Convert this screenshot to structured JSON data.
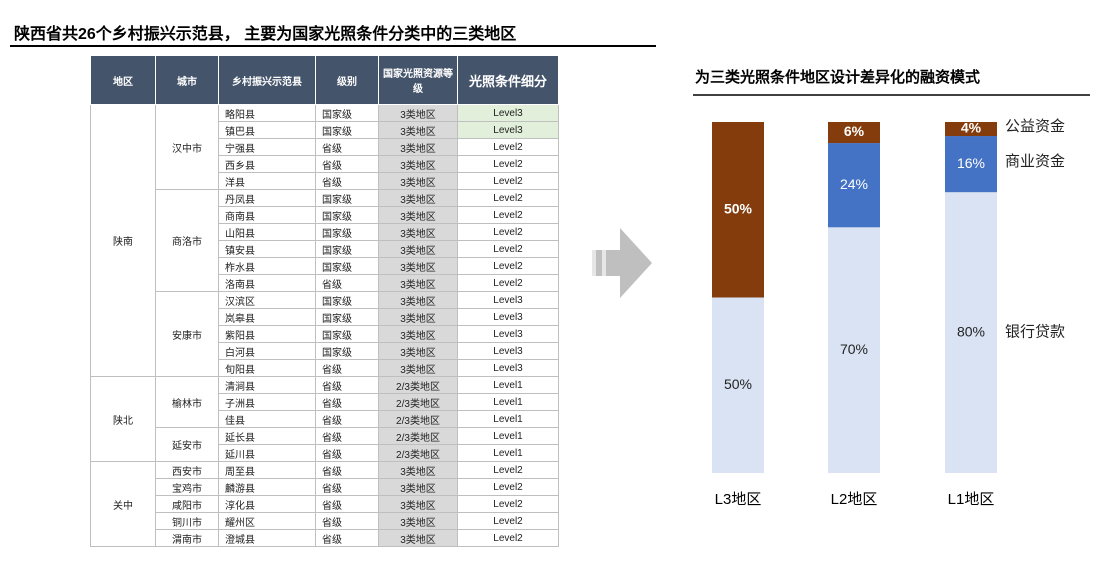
{
  "title": "陕西省共26个乡村振兴示范县， 主要为国家光照条件分类中的三类地区",
  "table": {
    "headers": [
      "地区",
      "城市",
      "乡村振兴示范县",
      "级别",
      "国家光照资源等级",
      "光照条件细分"
    ],
    "regions": [
      {
        "name": "陕南",
        "cities": [
          {
            "name": "汉中市",
            "rows": [
              [
                "略阳县",
                "国家级",
                "3类地区",
                "Level3"
              ],
              [
                "镇巴县",
                "国家级",
                "3类地区",
                "Level3"
              ],
              [
                "宁强县",
                "省级",
                "3类地区",
                "Level2"
              ],
              [
                "西乡县",
                "省级",
                "3类地区",
                "Level2"
              ],
              [
                "洋县",
                "省级",
                "3类地区",
                "Level2"
              ]
            ]
          },
          {
            "name": "商洛市",
            "rows": [
              [
                "丹凤县",
                "国家级",
                "3类地区",
                "Level2"
              ],
              [
                "商南县",
                "国家级",
                "3类地区",
                "Level2"
              ],
              [
                "山阳县",
                "国家级",
                "3类地区",
                "Level2"
              ],
              [
                "镇安县",
                "国家级",
                "3类地区",
                "Level2"
              ],
              [
                "柞水县",
                "国家级",
                "3类地区",
                "Level2"
              ],
              [
                "洛南县",
                "省级",
                "3类地区",
                "Level2"
              ]
            ]
          },
          {
            "name": "安康市",
            "rows": [
              [
                "汉滨区",
                "国家级",
                "3类地区",
                "Level3"
              ],
              [
                "岚皋县",
                "国家级",
                "3类地区",
                "Level3"
              ],
              [
                "紫阳县",
                "国家级",
                "3类地区",
                "Level3"
              ],
              [
                "白河县",
                "国家级",
                "3类地区",
                "Level3"
              ],
              [
                "旬阳县",
                "省级",
                "3类地区",
                "Level3"
              ]
            ]
          }
        ]
      },
      {
        "name": "陕北",
        "cities": [
          {
            "name": "榆林市",
            "rows": [
              [
                "清涧县",
                "省级",
                "2/3类地区",
                "Level1"
              ],
              [
                "子洲县",
                "省级",
                "2/3类地区",
                "Level1"
              ],
              [
                "佳县",
                "省级",
                "2/3类地区",
                "Level1"
              ]
            ]
          },
          {
            "name": "延安市",
            "rows": [
              [
                "延长县",
                "省级",
                "2/3类地区",
                "Level1"
              ],
              [
                "延川县",
                "省级",
                "2/3类地区",
                "Level1"
              ]
            ]
          }
        ]
      },
      {
        "name": "关中",
        "cities": [
          {
            "name": "西安市",
            "rows": [
              [
                "周至县",
                "省级",
                "3类地区",
                "Level2"
              ]
            ]
          },
          {
            "name": "宝鸡市",
            "rows": [
              [
                "麟游县",
                "省级",
                "3类地区",
                "Level2"
              ]
            ]
          },
          {
            "name": "咸阳市",
            "rows": [
              [
                "淳化县",
                "省级",
                "3类地区",
                "Level2"
              ]
            ]
          },
          {
            "name": "铜川市",
            "rows": [
              [
                "耀州区",
                "省级",
                "3类地区",
                "Level2"
              ]
            ]
          },
          {
            "name": "渭南市",
            "rows": [
              [
                "澄城县",
                "省级",
                "3类地区",
                "Level2"
              ]
            ]
          }
        ]
      }
    ]
  },
  "chart_data": {
    "type": "stacked_bar",
    "title": "为三类光照条件地区设计差异化的融资模式",
    "categories": [
      "L3地区",
      "L2地区",
      "L1地区"
    ],
    "ylim": [
      0,
      100
    ],
    "series": [
      {
        "name": "银行贷款",
        "color": "#dae3f3",
        "values": [
          50,
          70,
          80
        ],
        "value_labels": [
          "50%",
          "70%",
          "80%"
        ]
      },
      {
        "name": "商业资金",
        "color": "#4472c4",
        "values": [
          null,
          24,
          16
        ],
        "value_labels": [
          null,
          "24%",
          "16%"
        ]
      },
      {
        "name": "公益资金",
        "color": "#843c0c",
        "values": [
          50,
          6,
          4
        ],
        "value_labels": [
          "50%",
          "6%",
          "4%"
        ]
      }
    ]
  }
}
